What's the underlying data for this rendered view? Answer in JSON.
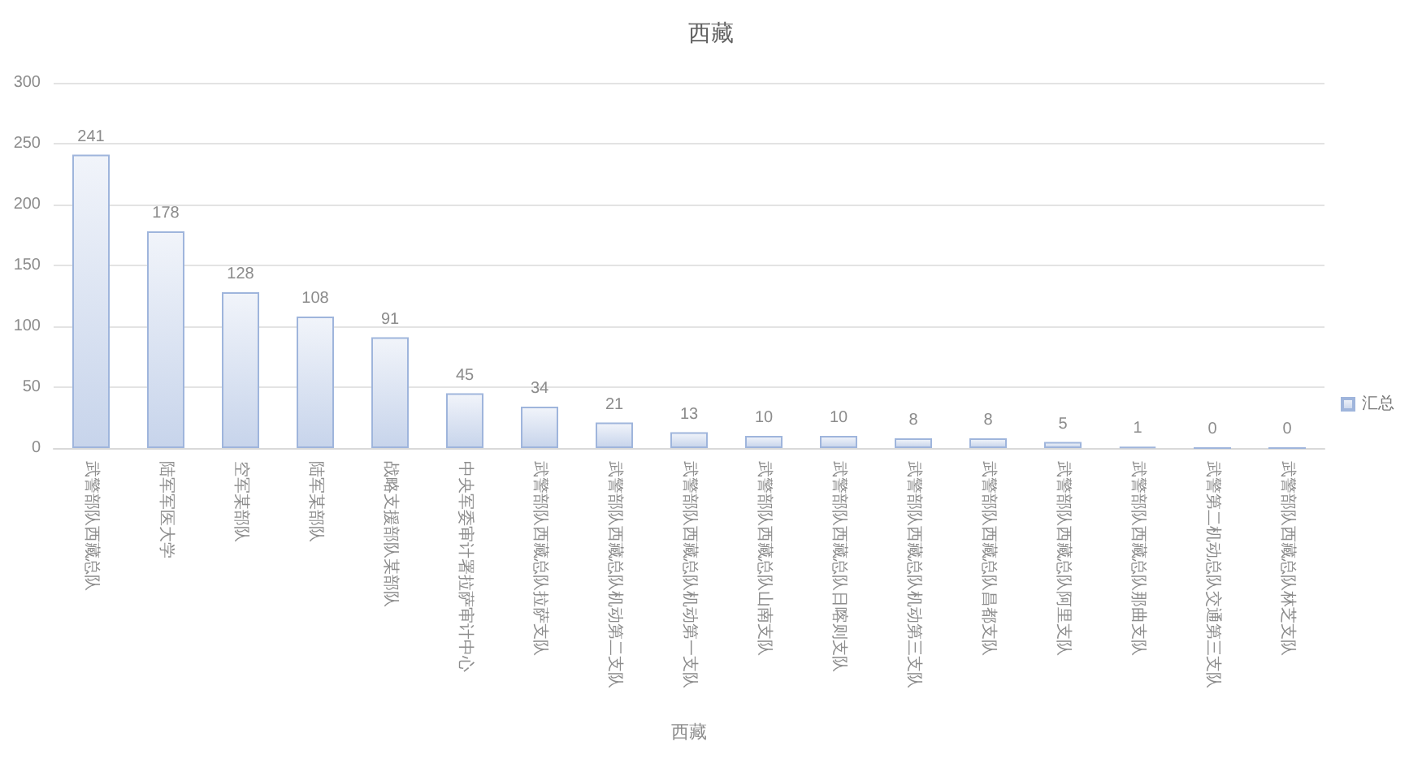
{
  "chart_data": {
    "type": "bar",
    "title": "西藏",
    "xlabel": "西藏",
    "categories": [
      "武警部队西藏总队",
      "陆军军医大学",
      "空军某部队",
      "陆军某部队",
      "战略支援部队某部队",
      "中央军委审计署拉萨审计中心",
      "武警部队西藏总队拉萨支队",
      "武警部队西藏总队机动第二支队",
      "武警部队西藏总队机动第一支队",
      "武警部队西藏总队山南支队",
      "武警部队西藏总队日喀则支队",
      "武警部队西藏总队机动第三支队",
      "武警部队西藏总队昌都支队",
      "武警部队西藏总队阿里支队",
      "武警部队西藏总队那曲支队",
      "武警第二机动总队交通第三支队",
      "武警部队西藏总队林芝支队"
    ],
    "series": [
      {
        "name": "汇总",
        "color": "#9fb5dc",
        "values": [
          241,
          178,
          128,
          108,
          91,
          45,
          34,
          21,
          13,
          10,
          10,
          8,
          8,
          5,
          1,
          0,
          0
        ]
      }
    ],
    "ylim": [
      0,
      300
    ],
    "yticks": [
      0,
      50,
      100,
      150,
      200,
      250,
      300
    ],
    "data_labels": true,
    "grid": "y",
    "legend": "right"
  }
}
